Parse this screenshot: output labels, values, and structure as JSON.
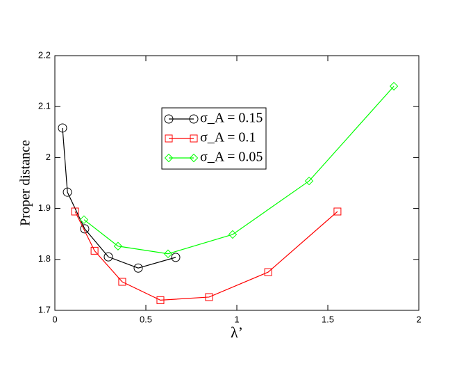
{
  "chart_data": {
    "type": "line",
    "x_label": "λ’",
    "y_label": "Proper distance",
    "xlim": [
      0,
      2
    ],
    "xticks": [
      0,
      0.5,
      1,
      1.5,
      2
    ],
    "ylim": [
      1.7,
      2.2
    ],
    "yticks": [
      1.7,
      1.8,
      1.9,
      2,
      2.1,
      2.2
    ],
    "series": [
      {
        "name": "σ_A = 0.15",
        "color": "#000000",
        "marker": "circle",
        "x": [
          0.042,
          0.069,
          0.164,
          0.294,
          0.458,
          0.664
        ],
        "values": [
          2.058,
          1.932,
          1.86,
          1.805,
          1.783,
          1.804
        ]
      },
      {
        "name": "σ_A = 0.1",
        "color": "#ff0000",
        "marker": "square",
        "x": [
          0.111,
          0.218,
          0.37,
          0.58,
          0.847,
          1.172,
          1.553
        ],
        "values": [
          1.894,
          1.817,
          1.756,
          1.72,
          1.726,
          1.775,
          1.894
        ]
      },
      {
        "name": "σ_A = 0.05",
        "color": "#00ff00",
        "marker": "diamond",
        "x": [
          0.16,
          0.347,
          0.622,
          0.977,
          1.397,
          1.863
        ],
        "values": [
          1.878,
          1.826,
          1.811,
          1.849,
          1.954,
          2.14
        ]
      }
    ]
  }
}
